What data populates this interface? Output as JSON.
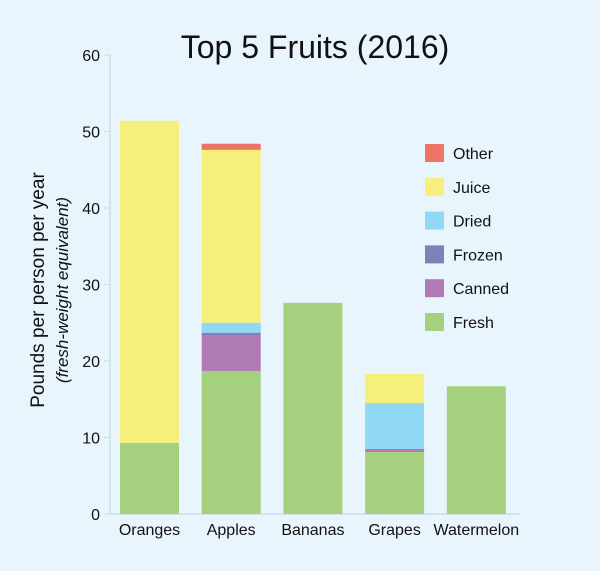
{
  "chart_data": {
    "type": "bar",
    "stacked": true,
    "title": "Top 5 Fruits (2016)",
    "xlabel": "",
    "ylabel": "Pounds per person per year",
    "ylabel_sub": "(fresh-weight equivalent)",
    "ylim": [
      0,
      60
    ],
    "yticks": [
      0,
      10,
      20,
      30,
      40,
      50,
      60
    ],
    "grid": false,
    "legend_position": "right",
    "categories": [
      "Oranges",
      "Apples",
      "Bananas",
      "Grapes",
      "Watermelon"
    ],
    "series": [
      {
        "name": "Fresh",
        "color": "#a5d17f",
        "values": [
          9.3,
          18.7,
          27.6,
          8.1,
          16.7
        ]
      },
      {
        "name": "Canned",
        "color": "#b07ab4",
        "values": [
          0,
          4.7,
          0,
          0.4,
          0
        ]
      },
      {
        "name": "Frozen",
        "color": "#7b82b8",
        "values": [
          0,
          0.3,
          0,
          0,
          0
        ]
      },
      {
        "name": "Dried",
        "color": "#90d8f4",
        "values": [
          0,
          1.3,
          0,
          6.0,
          0
        ]
      },
      {
        "name": "Juice",
        "color": "#f6ef7c",
        "values": [
          42.1,
          22.6,
          0,
          3.8,
          0
        ]
      },
      {
        "name": "Other",
        "color": "#ef7466",
        "values": [
          0,
          0.8,
          0,
          0,
          0
        ]
      }
    ]
  }
}
